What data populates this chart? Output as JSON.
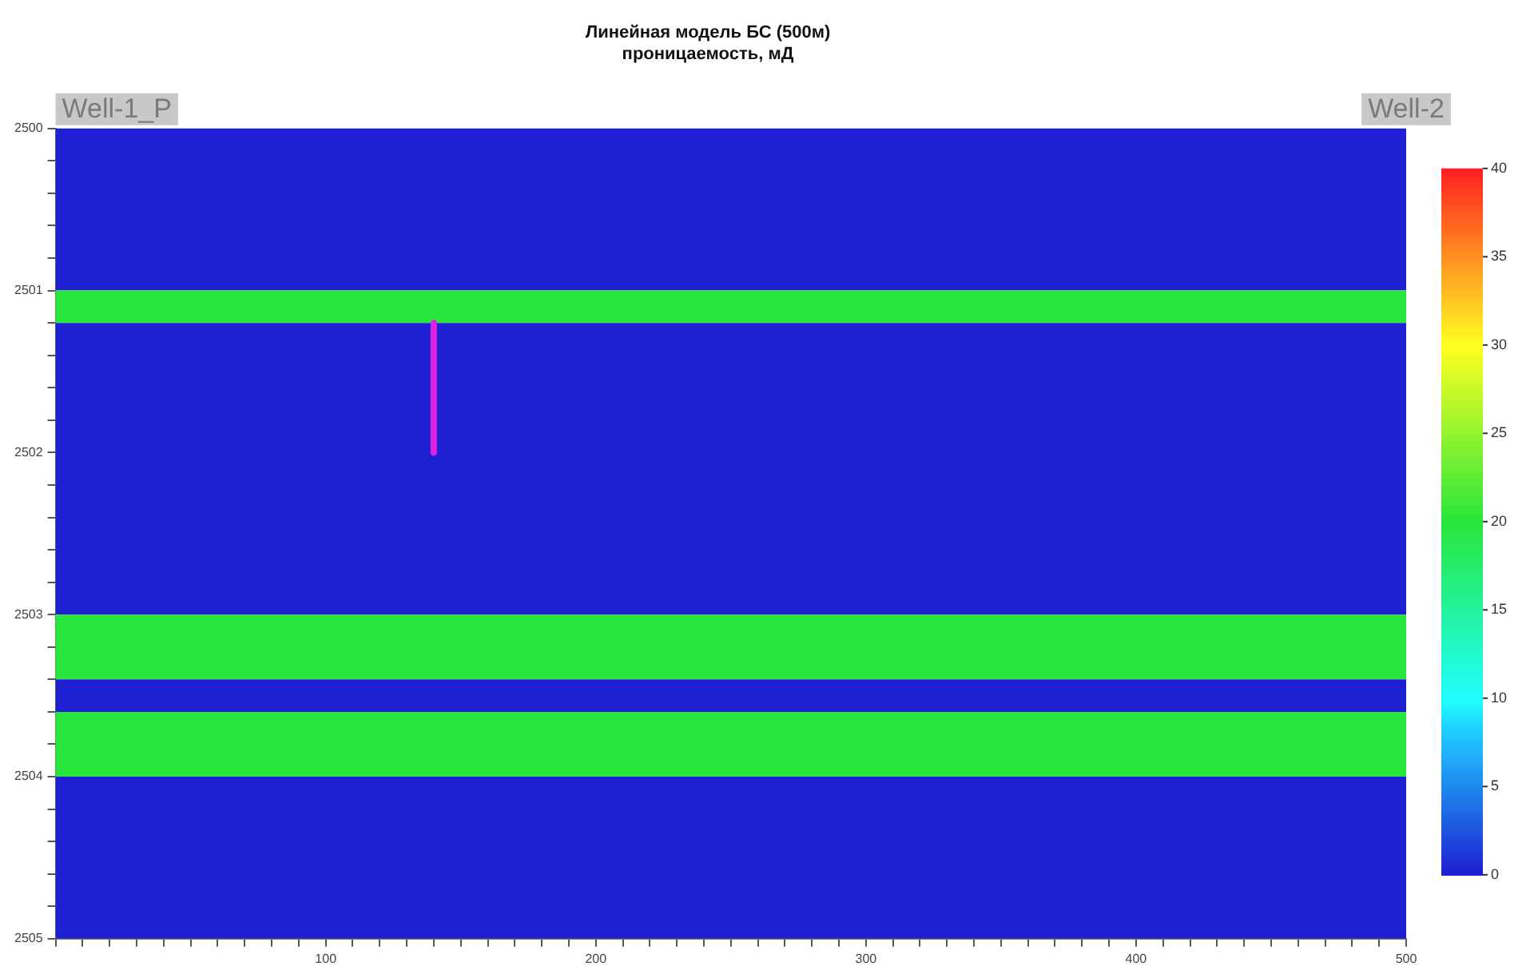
{
  "chart_data": {
    "type": "line",
    "title": "Линейная модель БС (500м)",
    "subtitle": "проницаемость, мД",
    "series": [
      {
        "color": "#e020e0",
        "x": [
          140,
          140
        ],
        "values": [
          2501.2,
          2502
        ]
      }
    ],
    "bands": [
      {
        "axis": "y",
        "from": 2500,
        "to": 2501,
        "color": "#1e1ed2"
      },
      {
        "axis": "y",
        "from": 2501,
        "to": 2501.2,
        "color": "#28e63c"
      },
      {
        "axis": "y",
        "from": 2501.2,
        "to": 2503,
        "color": "#1e1ed2"
      },
      {
        "axis": "y",
        "from": 2503,
        "to": 2503.4,
        "color": "#28e63c"
      },
      {
        "axis": "y",
        "from": 2503.4,
        "to": 2503.6,
        "color": "#1e1ed2"
      },
      {
        "axis": "y",
        "from": 2503.6,
        "to": 2504,
        "color": "#28e63c"
      },
      {
        "axis": "y",
        "from": 2504,
        "to": 2505,
        "color": "#1e1ed2"
      }
    ],
    "clim": [
      0,
      40
    ],
    "cticks": [
      0,
      5,
      10,
      15,
      20,
      25,
      30,
      35,
      40
    ],
    "xlim": [
      0,
      500
    ],
    "ylim": [
      2505,
      2500
    ],
    "xticks": [
      {
        "value": 0,
        "label": null
      },
      {
        "value": 10,
        "label": null
      },
      {
        "value": 20,
        "label": null
      },
      {
        "value": 30,
        "label": null
      },
      {
        "value": 40,
        "label": null
      },
      {
        "value": 50,
        "label": null
      },
      {
        "value": 60,
        "label": null
      },
      {
        "value": 70,
        "label": null
      },
      {
        "value": 80,
        "label": null
      },
      {
        "value": 90,
        "label": null
      },
      100,
      {
        "value": 110,
        "label": null
      },
      {
        "value": 120,
        "label": null
      },
      {
        "value": 130,
        "label": null
      },
      {
        "value": 140,
        "label": null
      },
      {
        "value": 150,
        "label": null
      },
      {
        "value": 160,
        "label": null
      },
      {
        "value": 170,
        "label": null
      },
      {
        "value": 180,
        "label": null
      },
      {
        "value": 190,
        "label": null
      },
      200,
      {
        "value": 210,
        "label": null
      },
      {
        "value": 220,
        "label": null
      },
      {
        "value": 230,
        "label": null
      },
      {
        "value": 240,
        "label": null
      },
      {
        "value": 250,
        "label": null
      },
      {
        "value": 260,
        "label": null
      },
      {
        "value": 270,
        "label": null
      },
      {
        "value": 280,
        "label": null
      },
      {
        "value": 290,
        "label": null
      },
      300,
      {
        "value": 310,
        "label": null
      },
      {
        "value": 320,
        "label": null
      },
      {
        "value": 330,
        "label": null
      },
      {
        "value": 340,
        "label": null
      },
      {
        "value": 350,
        "label": null
      },
      {
        "value": 360,
        "label": null
      },
      {
        "value": 370,
        "label": null
      },
      {
        "value": 380,
        "label": null
      },
      {
        "value": 390,
        "label": null
      },
      400,
      {
        "value": 410,
        "label": null
      },
      {
        "value": 420,
        "label": null
      },
      {
        "value": 430,
        "label": null
      },
      {
        "value": 440,
        "label": null
      },
      {
        "value": 450,
        "label": null
      },
      {
        "value": 460,
        "label": null
      },
      {
        "value": 470,
        "label": null
      },
      {
        "value": 480,
        "label": null
      },
      {
        "value": 490,
        "label": null
      },
      500
    ],
    "yticks": [
      2500,
      {
        "value": 2500.2,
        "label": null
      },
      {
        "value": 2500.4,
        "label": null
      },
      {
        "value": 2500.6,
        "label": null
      },
      {
        "value": 2500.8,
        "label": null
      },
      2501,
      {
        "value": 2501.2,
        "label": null
      },
      {
        "value": 2501.4,
        "label": null
      },
      {
        "value": 2501.6,
        "label": null
      },
      {
        "value": 2501.8,
        "label": null
      },
      2502,
      {
        "value": 2502.2,
        "label": null
      },
      {
        "value": 2502.4,
        "label": null
      },
      {
        "value": 2502.6,
        "label": null
      },
      {
        "value": 2502.8,
        "label": null
      },
      2503,
      {
        "value": 2503.2,
        "label": null
      },
      {
        "value": 2503.4,
        "label": null
      },
      {
        "value": 2503.6,
        "label": null
      },
      {
        "value": 2503.8,
        "label": null
      },
      2504,
      {
        "value": 2504.2,
        "label": null
      },
      {
        "value": 2504.4,
        "label": null
      },
      {
        "value": 2504.6,
        "label": null
      },
      {
        "value": 2504.8,
        "label": null
      },
      2505
    ],
    "annotations": [
      "Well-1_P",
      "Well-2"
    ],
    "grid": false,
    "legend": false
  }
}
